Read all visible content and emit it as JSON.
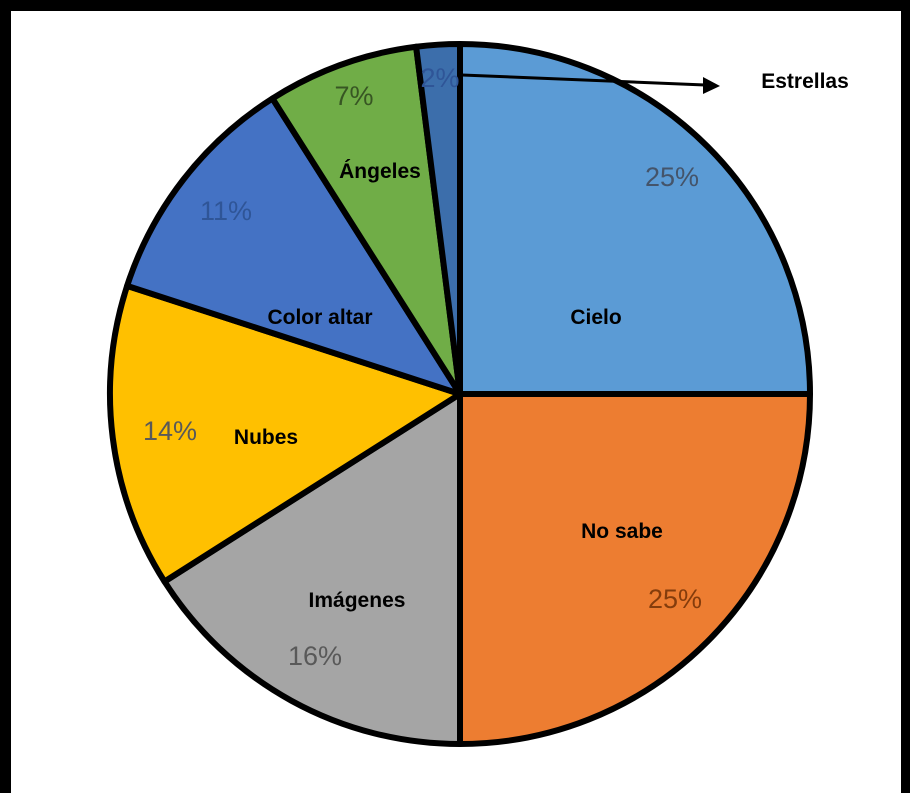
{
  "chart_data": {
    "type": "pie",
    "title": "",
    "slices": [
      {
        "label": "Cielo",
        "value": 25,
        "value_label": "25%",
        "color": "#5b9bd5"
      },
      {
        "label": "No sabe",
        "value": 25,
        "value_label": "25%",
        "color": "#ed7d31"
      },
      {
        "label": "Imágenes",
        "value": 16,
        "value_label": "16%",
        "color": "#a5a5a5"
      },
      {
        "label": "Nubes",
        "value": 14,
        "value_label": "14%",
        "color": "#ffc000"
      },
      {
        "label": "Color altar",
        "value": 11,
        "value_label": "11%",
        "color": "#4472c4"
      },
      {
        "label": "Ángeles",
        "value": 7,
        "value_label": "7%",
        "color": "#70ad47"
      },
      {
        "label": "Estrellas",
        "value": 2,
        "value_label": "2%",
        "color": "#3c6eab"
      }
    ]
  }
}
